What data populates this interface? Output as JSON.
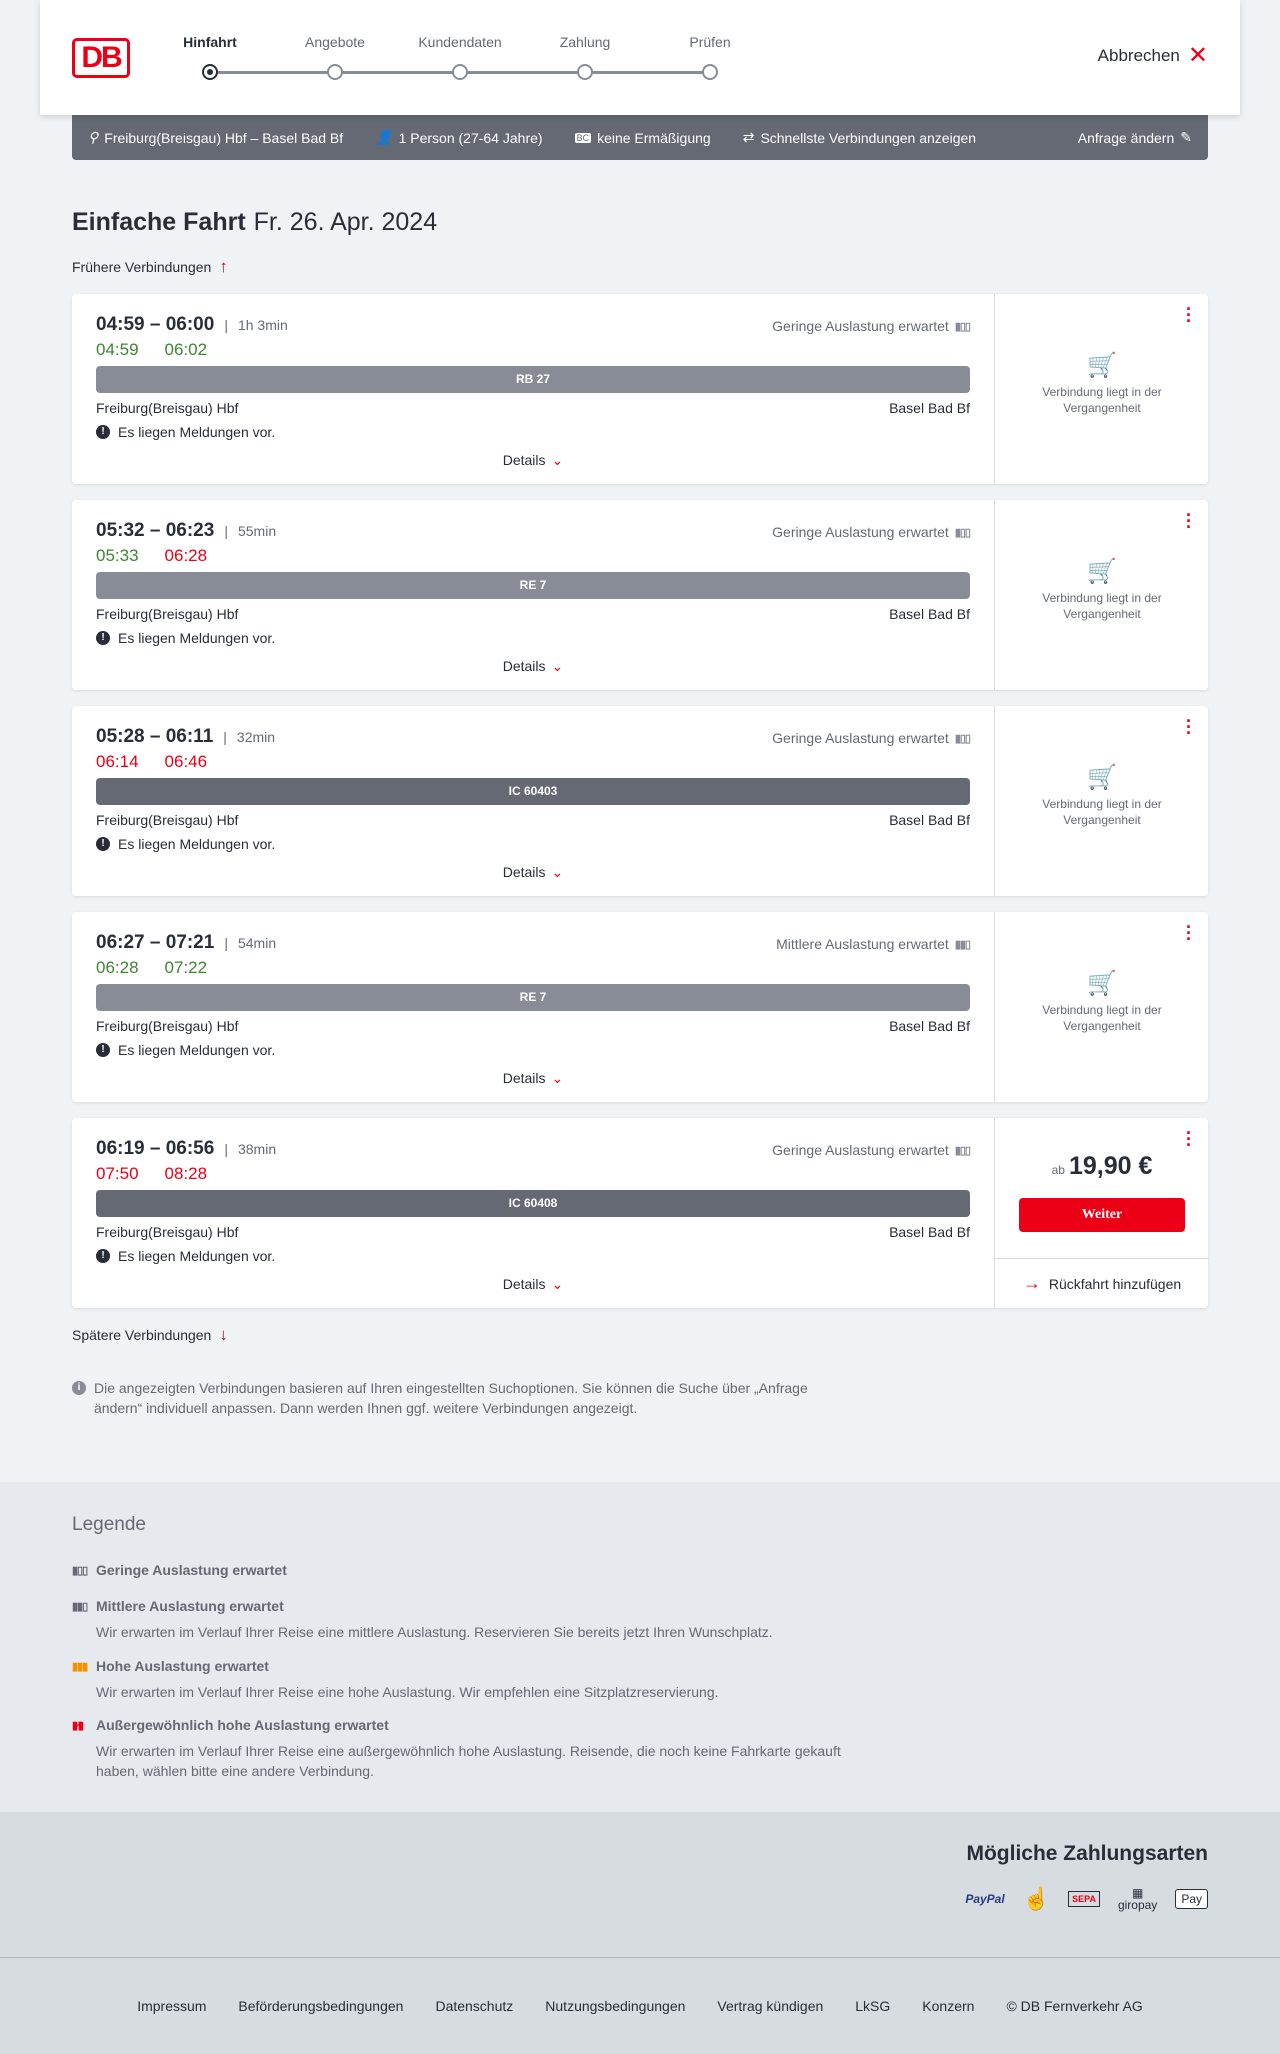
{
  "header": {
    "logo": "DB",
    "steps": [
      "Hinfahrt",
      "Angebote",
      "Kundendaten",
      "Zahlung",
      "Prüfen"
    ],
    "active_step": 0,
    "cancel": "Abbrechen"
  },
  "infobar": {
    "route": "Freiburg(Breisgau) Hbf – Basel Bad Bf",
    "persons": "1 Person (27-64 Jahre)",
    "discount": "keine Ermäßigung",
    "fastest": "Schnellste Verbindungen anzeigen",
    "edit": "Anfrage ändern"
  },
  "title": {
    "type": "Einfache Fahrt",
    "date": "Fr. 26. Apr. 2024"
  },
  "earlier": "Frühere Verbindungen",
  "later": "Spätere Verbindungen",
  "colors": {
    "accent": "#ec0016",
    "on_time": "#408335",
    "regional_bar": "#878c96",
    "ic_bar": "#646973"
  },
  "connections": [
    {
      "times": "04:59 – 06:00",
      "duration": "1h 3min",
      "load": "Geringe Auslastung erwartet",
      "rt_dep": "04:59",
      "rt_dep_status": "ok",
      "rt_arr": "06:02",
      "rt_arr_status": "ok",
      "train": "RB 27",
      "train_type": "regional",
      "from": "Freiburg(Breisgau) Hbf",
      "to": "Basel Bad Bf",
      "message": "Es liegen Meldungen vor.",
      "details": "Details",
      "past": "Verbindung liegt in der Vergangenheit"
    },
    {
      "times": "05:32 – 06:23",
      "duration": "55min",
      "load": "Geringe Auslastung erwartet",
      "rt_dep": "05:33",
      "rt_dep_status": "ok",
      "rt_arr": "06:28",
      "rt_arr_status": "late",
      "train": "RE 7",
      "train_type": "regional",
      "from": "Freiburg(Breisgau) Hbf",
      "to": "Basel Bad Bf",
      "message": "Es liegen Meldungen vor.",
      "details": "Details",
      "past": "Verbindung liegt in der Vergangenheit"
    },
    {
      "times": "05:28 – 06:11",
      "duration": "32min",
      "load": "Geringe Auslastung erwartet",
      "rt_dep": "06:14",
      "rt_dep_status": "late",
      "rt_arr": "06:46",
      "rt_arr_status": "late",
      "train": "IC 60403",
      "train_type": "ic",
      "from": "Freiburg(Breisgau) Hbf",
      "to": "Basel Bad Bf",
      "message": "Es liegen Meldungen vor.",
      "details": "Details",
      "past": "Verbindung liegt in der Vergangenheit"
    },
    {
      "times": "06:27 – 07:21",
      "duration": "54min",
      "load": "Mittlere Auslastung erwartet",
      "rt_dep": "06:28",
      "rt_dep_status": "ok",
      "rt_arr": "07:22",
      "rt_arr_status": "ok",
      "train": "RE 7",
      "train_type": "regional",
      "from": "Freiburg(Breisgau) Hbf",
      "to": "Basel Bad Bf",
      "message": "Es liegen Meldungen vor.",
      "details": "Details",
      "past": "Verbindung liegt in der Vergangenheit"
    },
    {
      "times": "06:19 – 06:56",
      "duration": "38min",
      "load": "Geringe Auslastung erwartet",
      "rt_dep": "07:50",
      "rt_dep_status": "late",
      "rt_arr": "08:28",
      "rt_arr_status": "late",
      "train": "IC 60408",
      "train_type": "ic",
      "from": "Freiburg(Breisgau) Hbf",
      "to": "Basel Bad Bf",
      "message": "Es liegen Meldungen vor.",
      "details": "Details",
      "price_prefix": "ab",
      "price": "19,90 €",
      "continue": "Weiter",
      "return": "Rückfahrt hinzufügen"
    }
  ],
  "note": "Die angezeigten Verbindungen basieren auf Ihren eingestellten Suchoptionen. Sie können die Suche über „Anfrage ändern“ individuell anpassen. Dann werden Ihnen ggf. weitere Verbindungen angezeigt.",
  "legend": {
    "title": "Legende",
    "items": [
      {
        "title": "Geringe Auslastung erwartet",
        "desc": "",
        "icon": "load-low-icon"
      },
      {
        "title": "Mittlere Auslastung erwartet",
        "desc": "Wir erwarten im Verlauf Ihrer Reise eine mittlere Auslastung. Reservieren Sie bereits jetzt Ihren Wunschplatz.",
        "icon": "load-medium-icon"
      },
      {
        "title": "Hohe Auslastung erwartet",
        "desc": "Wir erwarten im Verlauf Ihrer Reise eine hohe Auslastung. Wir empfehlen eine Sitzplatzreservierung.",
        "icon": "load-high-icon"
      },
      {
        "title": "Außergewöhnlich hohe Auslastung erwartet",
        "desc": "Wir erwarten im Verlauf Ihrer Reise eine außergewöhnlich hohe Auslastung. Reisende, die noch keine Fahrkarte gekauft haben, wählen bitte eine andere Verbindung.",
        "icon": "load-exceptional-icon"
      }
    ]
  },
  "payment": {
    "title": "Mögliche Zahlungsarten",
    "methods": [
      "PayPal",
      "Kreditkarte",
      "SEPA",
      "giropay",
      "Apple Pay"
    ]
  },
  "footer": [
    "Impressum",
    "Beförderungsbedingungen",
    "Datenschutz",
    "Nutzungsbedingungen",
    "Vertrag kündigen",
    "LkSG",
    "Konzern",
    "© DB Fernverkehr AG"
  ]
}
